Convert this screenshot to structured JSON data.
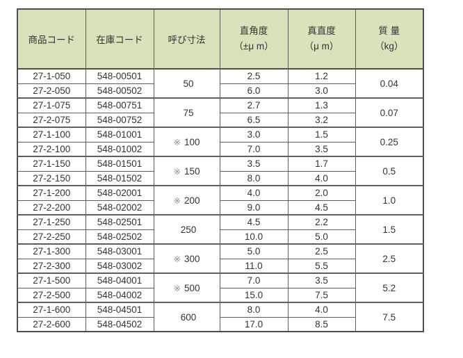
{
  "table": {
    "headers": [
      {
        "label": "商品コード"
      },
      {
        "label": "在庫コード"
      },
      {
        "label": "呼び寸法"
      },
      {
        "label": "直角度",
        "unit": "（±μ m）"
      },
      {
        "label": "真直度",
        "unit": "（μ m）"
      },
      {
        "label": "質 量",
        "unit": "（kg）"
      }
    ],
    "groups": [
      {
        "size": "50",
        "star": "",
        "mass": "0.04",
        "rows": [
          {
            "product_code": "27-1-050",
            "stock_code": "548-00501",
            "squareness": "2.5",
            "straightness": "1.2"
          },
          {
            "product_code": "27-2-050",
            "stock_code": "548-00502",
            "squareness": "6.0",
            "straightness": "3.0"
          }
        ]
      },
      {
        "size": "75",
        "star": "",
        "mass": "0.07",
        "rows": [
          {
            "product_code": "27-1-075",
            "stock_code": "548-00751",
            "squareness": "2.7",
            "straightness": "1.3"
          },
          {
            "product_code": "27-2-075",
            "stock_code": "548-00752",
            "squareness": "6.5",
            "straightness": "3.2"
          }
        ]
      },
      {
        "size": "100",
        "star": "※",
        "mass": "0.25",
        "rows": [
          {
            "product_code": "27-1-100",
            "stock_code": "548-01001",
            "squareness": "3.0",
            "straightness": "1.5"
          },
          {
            "product_code": "27-2-100",
            "stock_code": "548-01002",
            "squareness": "7.0",
            "straightness": "3.5"
          }
        ]
      },
      {
        "size": "150",
        "star": "※",
        "mass": "0.5",
        "rows": [
          {
            "product_code": "27-1-150",
            "stock_code": "548-01501",
            "squareness": "3.5",
            "straightness": "1.7"
          },
          {
            "product_code": "27-2-150",
            "stock_code": "548-01502",
            "squareness": "8.0",
            "straightness": "4.0"
          }
        ]
      },
      {
        "size": "200",
        "star": "※",
        "mass": "1.0",
        "rows": [
          {
            "product_code": "27-1-200",
            "stock_code": "548-02001",
            "squareness": "4.0",
            "straightness": "2.0"
          },
          {
            "product_code": "27-2-200",
            "stock_code": "548-02002",
            "squareness": "9.0",
            "straightness": "4.5"
          }
        ]
      },
      {
        "size": "250",
        "star": "",
        "mass": "1.5",
        "rows": [
          {
            "product_code": "27-1-250",
            "stock_code": "548-02501",
            "squareness": "4.5",
            "straightness": "2.2"
          },
          {
            "product_code": "27-2-250",
            "stock_code": "548-02502",
            "squareness": "10.0",
            "straightness": "5.0"
          }
        ]
      },
      {
        "size": "300",
        "star": "※",
        "mass": "2.5",
        "rows": [
          {
            "product_code": "27-1-300",
            "stock_code": "548-03001",
            "squareness": "5.0",
            "straightness": "2.5"
          },
          {
            "product_code": "27-2-300",
            "stock_code": "548-03002",
            "squareness": "11.0",
            "straightness": "5.5"
          }
        ]
      },
      {
        "size": "500",
        "star": "※",
        "mass": "5.2",
        "rows": [
          {
            "product_code": "27-1-500",
            "stock_code": "548-04001",
            "squareness": "7.0",
            "straightness": "3.5"
          },
          {
            "product_code": "27-2-500",
            "stock_code": "548-04002",
            "squareness": "15.0",
            "straightness": "7.5"
          }
        ]
      },
      {
        "size": "600",
        "star": "",
        "mass": "7.5",
        "rows": [
          {
            "product_code": "27-1-600",
            "stock_code": "548-04501",
            "squareness": "8.0",
            "straightness": "4.0"
          },
          {
            "product_code": "27-2-600",
            "stock_code": "548-04502",
            "squareness": "17.0",
            "straightness": "8.5"
          }
        ]
      }
    ]
  },
  "colors": {
    "header_bg": "#d7e3bb",
    "outer_border": "#4d4d4d",
    "grid_line": "#5e5e5e",
    "text": "#333333",
    "reference_mark": "#8c8c8c"
  }
}
